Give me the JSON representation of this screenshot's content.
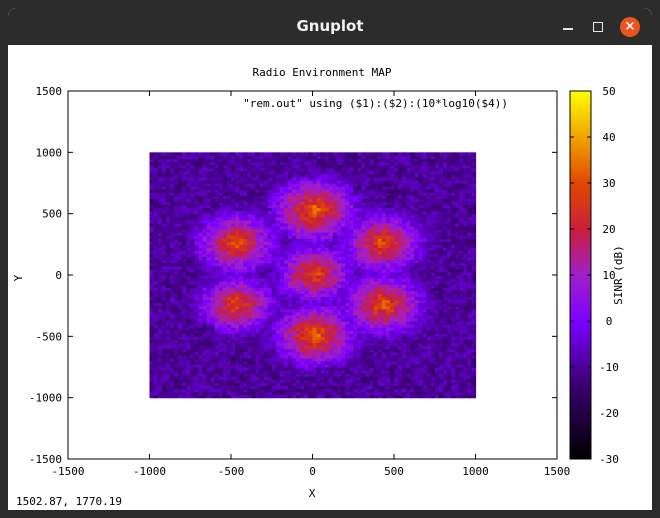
{
  "window": {
    "title": "Gnuplot"
  },
  "controls": {
    "minimize": "minimize",
    "maximize": "maximize",
    "close": "×"
  },
  "status": {
    "coords": "1502.87,  1770.19"
  },
  "chart_data": {
    "type": "heatmap",
    "title": "Radio Environment MAP",
    "key": "\"rem.out\" using ($1):($2):(10*log10($4))",
    "xlabel": "X",
    "ylabel": "Y",
    "colorbar_label": "SINR (dB)",
    "xlim": [
      -1500,
      1500
    ],
    "ylim": [
      -1500,
      1500
    ],
    "x_ticks": [
      -1500,
      -1000,
      -500,
      0,
      500,
      1000,
      1500
    ],
    "y_ticks": [
      -1500,
      -1000,
      -500,
      0,
      500,
      1000,
      1500
    ],
    "cbrange": [
      -30,
      50
    ],
    "cb_ticks": [
      -30,
      -20,
      -10,
      0,
      10,
      20,
      30,
      40,
      50
    ],
    "data_extent": {
      "x": [
        -1000,
        1000
      ],
      "y": [
        -1000,
        1000
      ]
    },
    "hotspots": [
      {
        "x": -480,
        "y": 250,
        "peak_db": 32
      },
      {
        "x": -480,
        "y": -250,
        "peak_db": 30
      },
      {
        "x": 0,
        "y": 520,
        "peak_db": 35
      },
      {
        "x": 0,
        "y": 0,
        "peak_db": 30
      },
      {
        "x": 0,
        "y": -500,
        "peak_db": 34
      },
      {
        "x": 420,
        "y": 250,
        "peak_db": 32
      },
      {
        "x": 420,
        "y": -250,
        "peak_db": 33
      }
    ],
    "background_db": -10,
    "colors": {
      "low": "#000000",
      "mid": "#8a00ff",
      "high": "#ffff00"
    }
  }
}
